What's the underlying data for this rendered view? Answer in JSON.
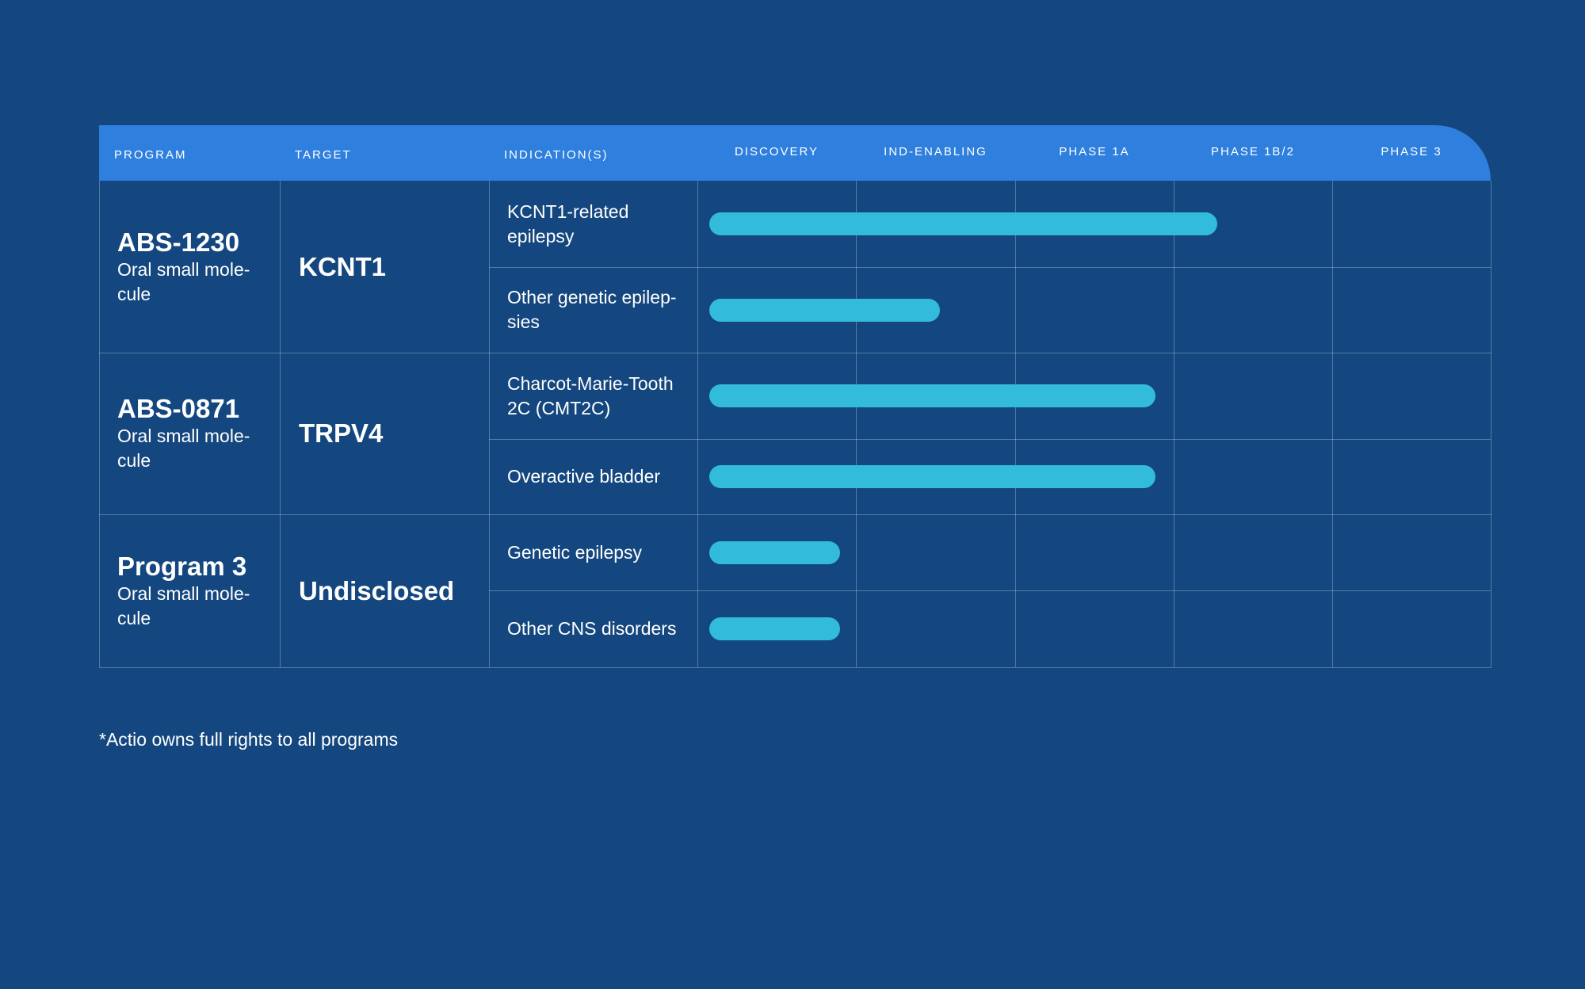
{
  "header": {
    "columns": [
      "PROGRAM",
      "TARGET",
      "INDICATION(S)",
      "DISCOVERY",
      "IND-ENABLING",
      "PHASE 1A",
      "PHASE 1B/2",
      "PHASE 3"
    ]
  },
  "programs": [
    {
      "name": "ABS-1230",
      "modality": "Oral small mole-cule",
      "target": "KCNT1",
      "indications": [
        {
          "label": "KCNT1-related epilepsy",
          "progress": 3.28
        },
        {
          "label": "Other genetic epilep-sies",
          "progress": 1.53
        }
      ]
    },
    {
      "name": "ABS-0871",
      "modality": "Oral small mole-cule",
      "target": "TRPV4",
      "indications": [
        {
          "label": "Charcot-Marie-Tooth 2C (CMT2C)",
          "progress": 2.89
        },
        {
          "label": "Overactive bladder",
          "progress": 2.89
        }
      ]
    },
    {
      "name": "Program 3",
      "modality": "Oral small mole-cule",
      "target": "Undisclosed",
      "indications": [
        {
          "label": "Genetic epilepsy",
          "progress": 0.9
        },
        {
          "label": "Other CNS disorders",
          "progress": 0.9
        }
      ]
    }
  ],
  "footnote": "*Actio owns full rights to all programs"
}
